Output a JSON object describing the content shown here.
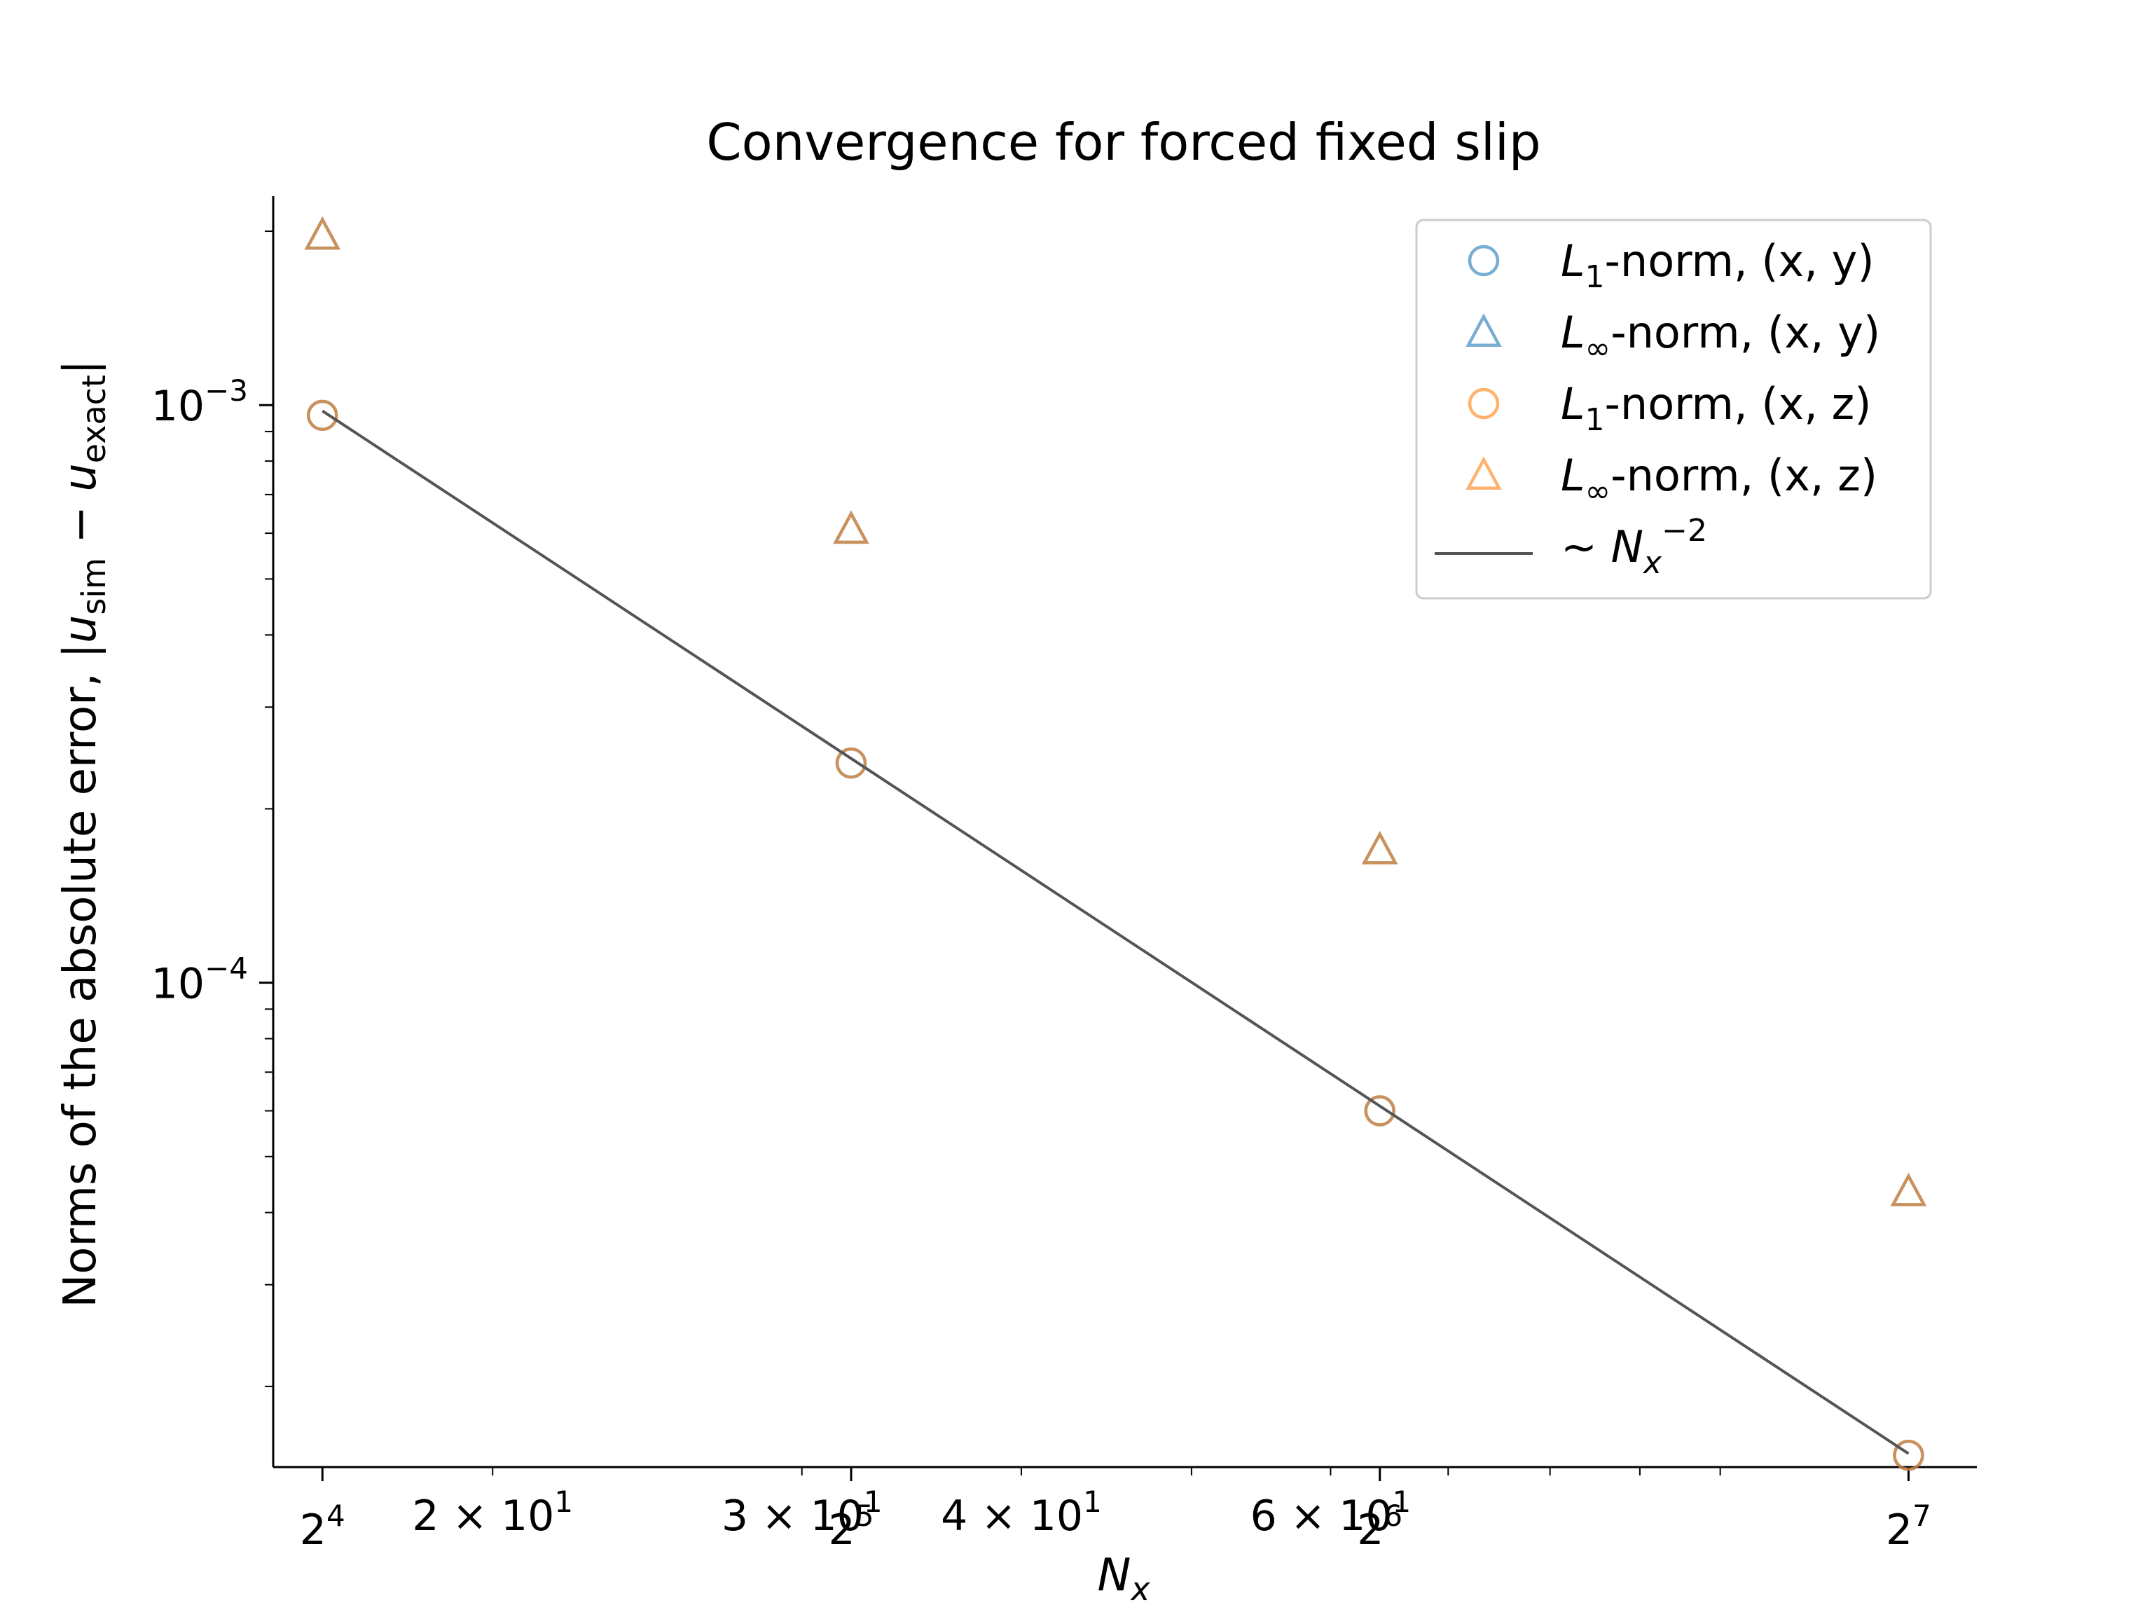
{
  "chart_data": {
    "type": "scatter",
    "title": "Convergence for forced fixed slip",
    "xlabel": {
      "base": "N",
      "sub": "x"
    },
    "ylabel": {
      "prefix": "Norms of the absolute error, |",
      "u1": "u",
      "sub1": "sim",
      "minus": " − ",
      "u2": "u",
      "sub2": "exact",
      "suffix": "|"
    },
    "xscale": "log",
    "yscale": "log",
    "xlim": [
      15.0,
      140.0
    ],
    "ylim": [
      1.45e-05,
      0.0023
    ],
    "grid": false,
    "legend_position": "top-right",
    "x_ticks_major": [
      {
        "value": 16,
        "base": "2",
        "exp": "4"
      },
      {
        "value": 32,
        "base": "2",
        "exp": "5"
      },
      {
        "value": 64,
        "base": "2",
        "exp": "6"
      },
      {
        "value": 128,
        "base": "2",
        "exp": "7"
      }
    ],
    "x_ticks_log_labels": [
      {
        "value": 20,
        "mant": "2 × 10",
        "exp": "1"
      },
      {
        "value": 30,
        "mant": "3 × 10",
        "exp": "1"
      },
      {
        "value": 40,
        "mant": "4 × 10",
        "exp": "1"
      },
      {
        "value": 60,
        "mant": "6 × 10",
        "exp": "1"
      }
    ],
    "x_minor_ticks": [
      20,
      30,
      40,
      50,
      60,
      70,
      80,
      90,
      100
    ],
    "y_ticks_major": [
      {
        "value": 0.001,
        "base": "10",
        "exp": "−3"
      },
      {
        "value": 0.0001,
        "base": "10",
        "exp": "−4"
      }
    ],
    "y_minor_ticks": [
      2e-05,
      3e-05,
      4e-05,
      5e-05,
      6e-05,
      7e-05,
      8e-05,
      9e-05,
      0.0002,
      0.0003,
      0.0004,
      0.0005,
      0.0006,
      0.0007,
      0.0008,
      0.0009,
      0.002
    ],
    "series": [
      {
        "name": {
          "pre": "L",
          "sub": "1",
          "post": "-norm, (x, y)"
        },
        "marker": "circle",
        "color": "#1f77b4",
        "x": [
          16,
          32,
          64,
          128
        ],
        "y": [
          0.00096,
          0.00024,
          6e-05,
          1.52e-05
        ]
      },
      {
        "name": {
          "pre": "L",
          "sub": "∞",
          "post": "-norm, (x, y)"
        },
        "marker": "triangle",
        "color": "#1f77b4",
        "x": [
          16,
          32,
          64,
          128
        ],
        "y": [
          0.00197,
          0.00061,
          0.00017,
          4.35e-05
        ]
      },
      {
        "name": {
          "pre": "L",
          "sub": "1",
          "post": "-norm, (x, z)"
        },
        "marker": "circle",
        "color": "#ff7f0e",
        "x": [
          16,
          32,
          64,
          128
        ],
        "y": [
          0.00096,
          0.00024,
          6e-05,
          1.52e-05
        ]
      },
      {
        "name": {
          "pre": "L",
          "sub": "∞",
          "post": "-norm, (x, z)"
        },
        "marker": "triangle",
        "color": "#ff7f0e",
        "x": [
          16,
          32,
          64,
          128
        ],
        "y": [
          0.00197,
          0.00061,
          0.00017,
          4.35e-05
        ]
      },
      {
        "name": {
          "pre": "∼ N",
          "sub": "x",
          "sup": "−2"
        },
        "marker": "line",
        "color": "#555555",
        "x": [
          16,
          128
        ],
        "y": [
          0.000977,
          1.53e-05
        ]
      }
    ]
  }
}
